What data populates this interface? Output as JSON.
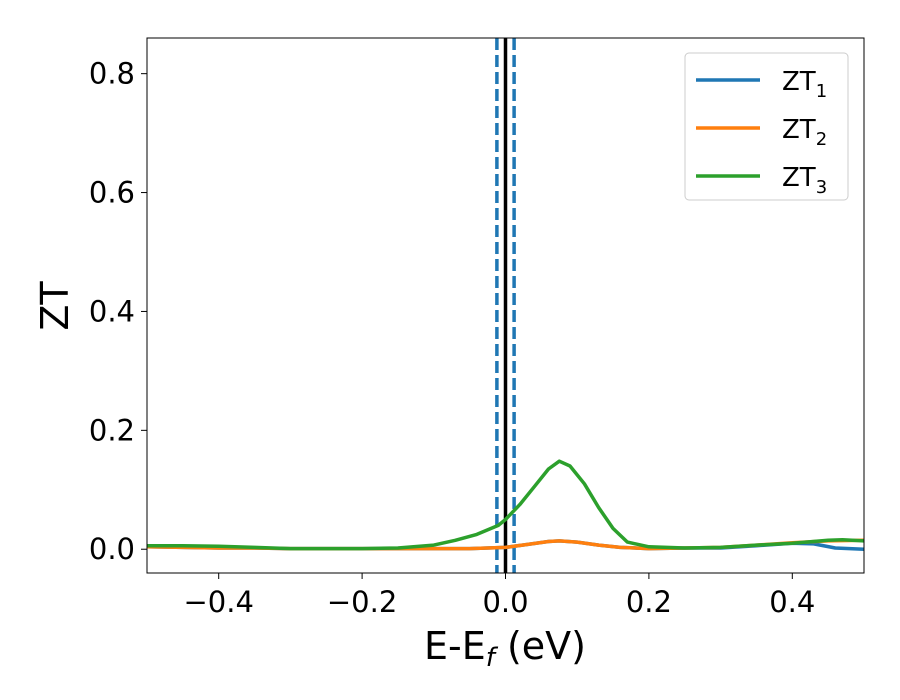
{
  "chart_data": {
    "type": "line",
    "xlabel": "E-E",
    "xlabel_sub": "f",
    "xlabel_unit": " (eV)",
    "ylabel": "ZT",
    "xlim": [
      -0.5,
      0.5
    ],
    "ylim": [
      -0.04,
      0.86
    ],
    "grid": false,
    "legend_position": "top-right",
    "x_ticks": [
      {
        "value": -0.4,
        "label": "−0.4"
      },
      {
        "value": -0.2,
        "label": "−0.2"
      },
      {
        "value": 0.0,
        "label": "0.0"
      },
      {
        "value": 0.2,
        "label": "0.2"
      },
      {
        "value": 0.4,
        "label": "0.4"
      }
    ],
    "y_ticks": [
      {
        "value": 0.0,
        "label": "0.0"
      },
      {
        "value": 0.2,
        "label": "0.2"
      },
      {
        "value": 0.4,
        "label": "0.4"
      },
      {
        "value": 0.6,
        "label": "0.6"
      },
      {
        "value": 0.8,
        "label": "0.8"
      }
    ],
    "vlines": [
      {
        "x": 0.0,
        "style": "solid",
        "color": "#000000"
      },
      {
        "x": -0.012,
        "style": "dashed",
        "color": "#1f77b4"
      },
      {
        "x": 0.012,
        "style": "dashed",
        "color": "#1f77b4"
      }
    ],
    "series": [
      {
        "name": "ZT",
        "name_sub": "1",
        "color": "#1f77b4",
        "points": [
          [
            -0.5,
            0.004
          ],
          [
            -0.45,
            0.003
          ],
          [
            -0.4,
            0.002
          ],
          [
            -0.35,
            0.002
          ],
          [
            -0.3,
            0.001
          ],
          [
            -0.25,
            0.001
          ],
          [
            -0.2,
            0.001
          ],
          [
            -0.15,
            0.001
          ],
          [
            -0.1,
            0.001
          ],
          [
            -0.05,
            0.001
          ],
          [
            0.0,
            0.003
          ],
          [
            0.03,
            0.008
          ],
          [
            0.06,
            0.013
          ],
          [
            0.075,
            0.014
          ],
          [
            0.1,
            0.012
          ],
          [
            0.13,
            0.007
          ],
          [
            0.16,
            0.003
          ],
          [
            0.2,
            0.001
          ],
          [
            0.25,
            0.002
          ],
          [
            0.3,
            0.002
          ],
          [
            0.35,
            0.006
          ],
          [
            0.4,
            0.01
          ],
          [
            0.43,
            0.009
          ],
          [
            0.46,
            0.002
          ],
          [
            0.5,
            0.0
          ]
        ]
      },
      {
        "name": "ZT",
        "name_sub": "2",
        "color": "#ff7f0e",
        "points": [
          [
            -0.5,
            0.004
          ],
          [
            -0.45,
            0.003
          ],
          [
            -0.4,
            0.002
          ],
          [
            -0.35,
            0.002
          ],
          [
            -0.3,
            0.001
          ],
          [
            -0.25,
            0.001
          ],
          [
            -0.2,
            0.001
          ],
          [
            -0.15,
            0.001
          ],
          [
            -0.1,
            0.001
          ],
          [
            -0.05,
            0.001
          ],
          [
            0.0,
            0.003
          ],
          [
            0.03,
            0.008
          ],
          [
            0.06,
            0.013
          ],
          [
            0.075,
            0.014
          ],
          [
            0.1,
            0.012
          ],
          [
            0.13,
            0.007
          ],
          [
            0.16,
            0.003
          ],
          [
            0.2,
            0.001
          ],
          [
            0.25,
            0.002
          ],
          [
            0.3,
            0.003
          ],
          [
            0.35,
            0.007
          ],
          [
            0.4,
            0.011
          ],
          [
            0.45,
            0.014
          ],
          [
            0.5,
            0.015
          ]
        ]
      },
      {
        "name": "ZT",
        "name_sub": "3",
        "color": "#2ca02c",
        "points": [
          [
            -0.5,
            0.006
          ],
          [
            -0.45,
            0.006
          ],
          [
            -0.4,
            0.005
          ],
          [
            -0.35,
            0.003
          ],
          [
            -0.3,
            0.001
          ],
          [
            -0.25,
            0.001
          ],
          [
            -0.2,
            0.001
          ],
          [
            -0.15,
            0.002
          ],
          [
            -0.1,
            0.007
          ],
          [
            -0.07,
            0.015
          ],
          [
            -0.04,
            0.025
          ],
          [
            -0.01,
            0.04
          ],
          [
            0.0,
            0.05
          ],
          [
            0.02,
            0.075
          ],
          [
            0.04,
            0.105
          ],
          [
            0.06,
            0.135
          ],
          [
            0.075,
            0.148
          ],
          [
            0.09,
            0.14
          ],
          [
            0.11,
            0.11
          ],
          [
            0.13,
            0.07
          ],
          [
            0.15,
            0.035
          ],
          [
            0.17,
            0.012
          ],
          [
            0.2,
            0.004
          ],
          [
            0.25,
            0.002
          ],
          [
            0.3,
            0.003
          ],
          [
            0.35,
            0.007
          ],
          [
            0.4,
            0.01
          ],
          [
            0.45,
            0.015
          ],
          [
            0.47,
            0.016
          ],
          [
            0.5,
            0.014
          ]
        ]
      }
    ]
  }
}
